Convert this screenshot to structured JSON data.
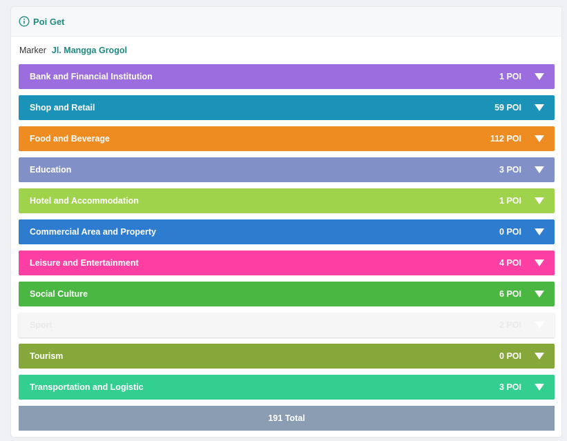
{
  "header": {
    "title": "Poi Get",
    "icon": "info-icon"
  },
  "marker": {
    "label": "Marker",
    "value": "Jl. Mangga Grogol"
  },
  "categories": [
    {
      "label": "Bank and Financial Institution",
      "count": "1 POI",
      "color": "#9b6ddf"
    },
    {
      "label": "Shop and Retail",
      "count": "59 POI",
      "color": "#1b93b8"
    },
    {
      "label": "Food and Beverage",
      "count": "112 POI",
      "color": "#ee8c22"
    },
    {
      "label": "Education",
      "count": "3 POI",
      "color": "#8190c7"
    },
    {
      "label": "Hotel and Accommodation",
      "count": "1 POI",
      "color": "#a0d34c"
    },
    {
      "label": "Commercial Area and Property",
      "count": "0 POI",
      "color": "#2d7ccf"
    },
    {
      "label": "Leisure and Entertainment",
      "count": "4 POI",
      "color": "#fd3ea3"
    },
    {
      "label": "Social Culture",
      "count": "6 POI",
      "color": "#4ab743"
    },
    {
      "label": "Sport",
      "count": "2 POI",
      "color": "#f6f6f6"
    },
    {
      "label": "Tourism",
      "count": "0 POI",
      "color": "#86a83b"
    },
    {
      "label": "Transportation and Logistic",
      "count": "3 POI",
      "color": "#33cf90"
    }
  ],
  "total": {
    "label": "191 Total",
    "color": "#8a9db3"
  }
}
